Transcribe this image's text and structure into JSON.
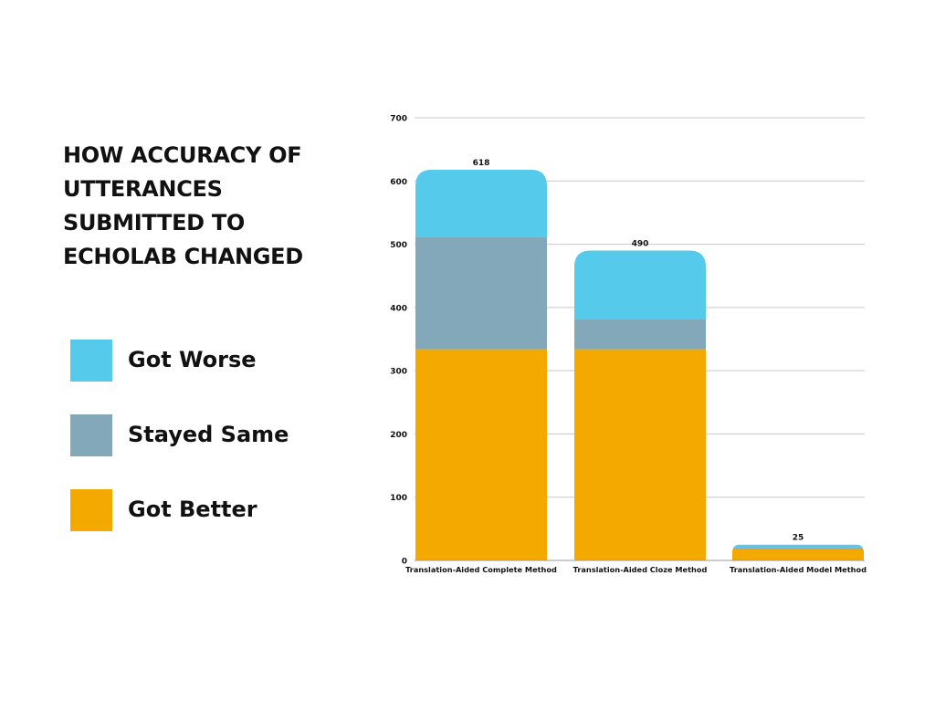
{
  "chart_data": {
    "type": "bar",
    "stacked": true,
    "title": "HOW ACCURACY OF UTTERANCES SUBMITTED TO ECHOLAB CHANGED",
    "xlabel": "",
    "ylabel": "",
    "categories": [
      "Translation-Aided Complete Method",
      "Translation-Aided Cloze Method",
      "Translation-Aided Model Method"
    ],
    "series": [
      {
        "name": "Got Better",
        "color": "#F4A900",
        "values": [
          334,
          334,
          18
        ]
      },
      {
        "name": "Stayed Same",
        "color": "#82A8BA",
        "values": [
          177,
          48,
          2
        ]
      },
      {
        "name": "Got Worse",
        "color": "#55CAEA",
        "values": [
          107,
          108,
          5
        ]
      }
    ],
    "totals": [
      618,
      490,
      25
    ],
    "ylim": [
      0,
      700
    ],
    "yticks": [
      0,
      100,
      200,
      300,
      400,
      500,
      600,
      700
    ],
    "grid": true,
    "legend_position": "left"
  },
  "legend": {
    "items": [
      {
        "label": "Got Worse",
        "color": "#55CAEA"
      },
      {
        "label": "Stayed Same",
        "color": "#82A8BA"
      },
      {
        "label": "Got Better",
        "color": "#F4A900"
      }
    ]
  },
  "colors": {
    "grid": "#C8C8C8",
    "text": "#111111",
    "background": "#FFFFFF"
  }
}
